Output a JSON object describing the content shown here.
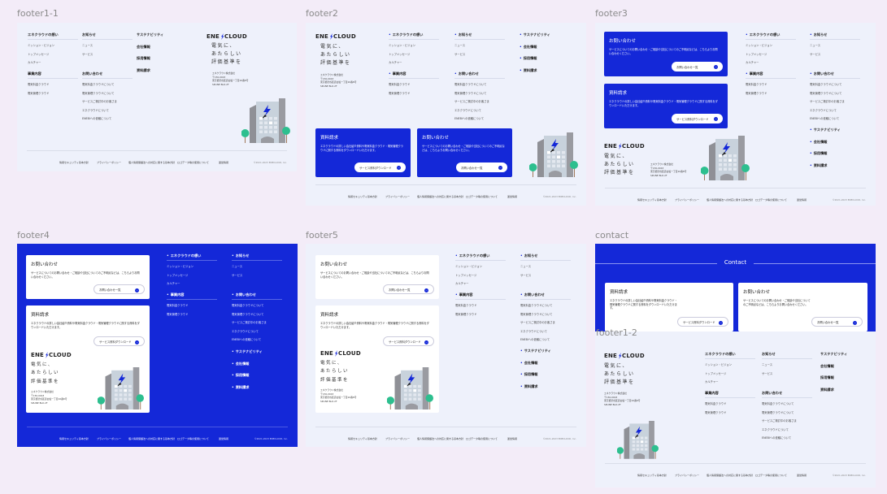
{
  "frames": [
    {
      "label": "footer1-1"
    },
    {
      "label": "footer2"
    },
    {
      "label": "footer3"
    },
    {
      "label": "footer4"
    },
    {
      "label": "footer5"
    },
    {
      "label": "contact"
    },
    {
      "label": "footer1-2"
    }
  ],
  "logo": {
    "left": "ENE",
    "right": "CLOUD"
  },
  "tagline": [
    "電気に、",
    "あたらしい",
    "評価基準を"
  ],
  "company": [
    "エネクラウド株式会社",
    "〒150-0043",
    "東京都渋谷区道玄坂一丁目10番8号",
    "SPLINE BLD.2F"
  ],
  "nav": {
    "groups": [
      {
        "title": "エネクラウドの想い",
        "items": [
          "ミッション・ビジョン",
          "トップメッセージ",
          "カルチャー"
        ]
      },
      {
        "title": "事業内容",
        "items": [
          "電気料金クラウド",
          "電気管理クラウド"
        ]
      },
      {
        "title": "お知らせ",
        "items": [
          "ニュース",
          "サービス"
        ]
      },
      {
        "title": "お問い合わせ",
        "items": [
          "電気料金クラウドについて",
          "電気管理クラウドについて",
          "サービスご検討中のお客さま",
          "エネクラウドについて",
          "ENEBIへの依頼について"
        ]
      }
    ],
    "singles": [
      "サステナビリティ",
      "会社情報",
      "採用情報",
      "資料請求"
    ]
  },
  "cards": {
    "document": {
      "title": "資料請求",
      "desc": "エネクラウドの詳しい会社紹介資料や電気料金クラウド・電気管理クラウドに関する資料をダウンロードいただけます。",
      "button": "サービス資料ダウンロード"
    },
    "contact": {
      "title": "お問い合わせ",
      "desc": "サービスについてのお問い合わせ・ご相談や当社についてのご不明点などは、こちらよりお問い合わせください。",
      "button": "お問い合わせ一覧"
    }
  },
  "contact_heading": "Contact",
  "bottom_links": [
    "情報セキュリティ基本方針",
    "プライバシーポリシー",
    "個人情報保護法への対応に関する基本方針",
    "ロゴデータ等の使用について",
    "運営情報"
  ],
  "copyright": "©2021-2023 ENECLOUD, Inc.",
  "colors": {
    "brand": "#1428d8",
    "canvas": "#f3ecf8",
    "frame": "#eef1fb",
    "tree": "#2dbf8f"
  }
}
